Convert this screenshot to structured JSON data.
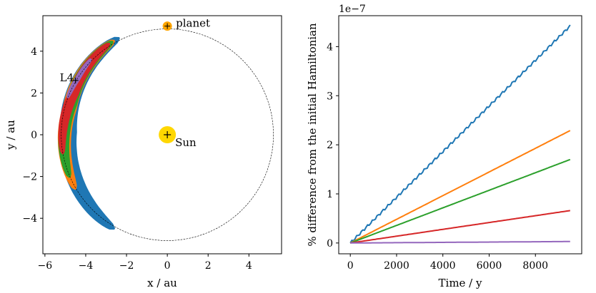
{
  "chart_data": [
    {
      "type": "scatter",
      "xlabel": "x / au",
      "ylabel": "y / au",
      "xlim": [
        -6.1,
        5.6
      ],
      "ylim": [
        -5.7,
        5.7
      ],
      "xticks": [
        -6,
        -4,
        -2,
        0,
        2,
        4
      ],
      "yticks": [
        -4,
        -2,
        0,
        2,
        4
      ],
      "xtick_labels": [
        "−6",
        "−4",
        "−2",
        "0",
        "2",
        "4"
      ],
      "ytick_labels": [
        "−4",
        "−2",
        "0",
        "2",
        "4"
      ],
      "grid": false,
      "orbit_radius": 5.2,
      "sun": {
        "x": 0,
        "y": 0,
        "label": "Sun",
        "color": "#ffd700"
      },
      "planet": {
        "x": 0,
        "y": 5.2,
        "label": "planet",
        "color": "#ffa500"
      },
      "lagrange_point": {
        "x": -4.5,
        "y": 2.6,
        "label": "L4"
      },
      "tadpoles": [
        {
          "color": "#1f77b4",
          "theta_start": 117,
          "theta_end": 240,
          "width": 0.75,
          "shift": -0.35
        },
        {
          "color": "#ff7f0e",
          "theta_start": 120,
          "theta_end": 210,
          "width": 0.6,
          "shift": -0.25
        },
        {
          "color": "#2ca02c",
          "theta_start": 121,
          "theta_end": 203,
          "width": 0.52,
          "shift": -0.25
        },
        {
          "color": "#d62728",
          "theta_start": 123,
          "theta_end": 190,
          "width": 0.42,
          "shift": -0.2
        },
        {
          "color": "#9467bd",
          "theta_start": 136,
          "theta_end": 160,
          "width": 0.17,
          "shift": -0.05
        }
      ]
    },
    {
      "type": "line",
      "xlabel": "Time / y",
      "ylabel": "% difference from the initial Hamiltonian",
      "offset_text": "1e−7",
      "xlim": [
        -500,
        10000
      ],
      "ylim": [
        -0.22,
        4.63
      ],
      "xticks": [
        0,
        2000,
        4000,
        6000,
        8000
      ],
      "yticks": [
        0,
        1,
        2,
        3,
        4
      ],
      "xtick_labels": [
        "0",
        "2000",
        "4000",
        "6000",
        "8000"
      ],
      "ytick_labels": [
        "0",
        "1",
        "2",
        "3",
        "4"
      ],
      "grid": false,
      "x": [
        0,
        9500
      ],
      "series": [
        {
          "color": "#1f77b4",
          "values": [
            0,
            4.42
          ]
        },
        {
          "color": "#ff7f0e",
          "values": [
            0,
            2.29
          ]
        },
        {
          "color": "#2ca02c",
          "values": [
            0,
            1.7
          ]
        },
        {
          "color": "#d62728",
          "values": [
            0,
            0.66
          ]
        },
        {
          "color": "#9467bd",
          "values": [
            0,
            0.03
          ]
        }
      ]
    }
  ]
}
